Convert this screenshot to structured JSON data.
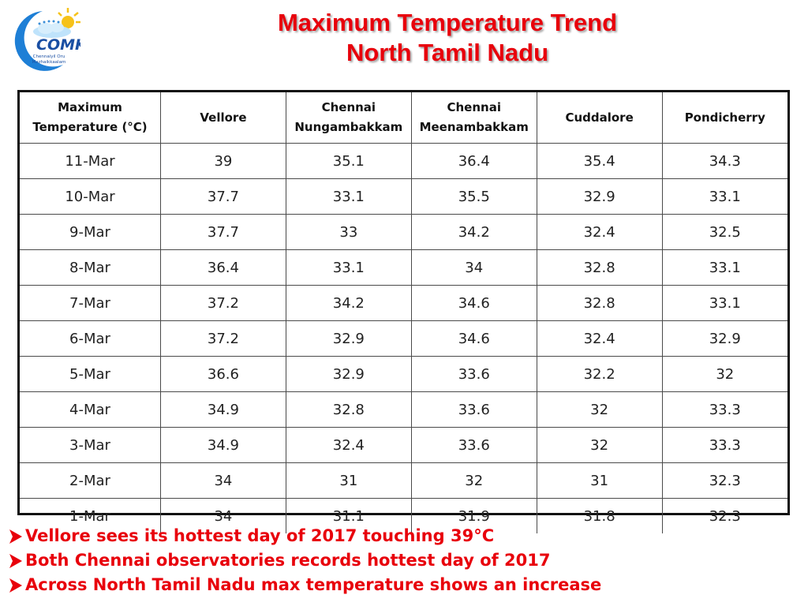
{
  "header": {
    "title_line1": "Maximum Temperature Trend",
    "title_line2": "North Tamil Nadu",
    "logo": {
      "icon": "cloud-sun-moon-logo",
      "brand": "COMK",
      "tagline_line1": "Chennaiyil Oru",
      "tagline_line2": "Mazhaikkaalam",
      "colors": {
        "moon": "#1e7fd6",
        "sun": "#f6c21a",
        "text": "#1a4fa3"
      }
    }
  },
  "table": {
    "headers": [
      "Maximum\nTemperature (°C)",
      "Vellore",
      "Chennai\nNungambakkam",
      "Chennai\nMeenambakkam",
      "Cuddalore",
      "Pondicherry"
    ],
    "rows": [
      [
        "11-Mar",
        "39",
        "35.1",
        "36.4",
        "35.4",
        "34.3"
      ],
      [
        "10-Mar",
        "37.7",
        "33.1",
        "35.5",
        "32.9",
        "33.1"
      ],
      [
        "9-Mar",
        "37.7",
        "33",
        "34.2",
        "32.4",
        "32.5"
      ],
      [
        "8-Mar",
        "36.4",
        "33.1",
        "34",
        "32.8",
        "33.1"
      ],
      [
        "7-Mar",
        "37.2",
        "34.2",
        "34.6",
        "32.8",
        "33.1"
      ],
      [
        "6-Mar",
        "37.2",
        "32.9",
        "34.6",
        "32.4",
        "32.9"
      ],
      [
        "5-Mar",
        "36.6",
        "32.9",
        "33.6",
        "32.2",
        "32"
      ],
      [
        "4-Mar",
        "34.9",
        "32.8",
        "33.6",
        "32",
        "33.3"
      ],
      [
        "3-Mar",
        "34.9",
        "32.4",
        "33.6",
        "32",
        "33.3"
      ],
      [
        "2-Mar",
        "34",
        "31",
        "32",
        "31",
        "32.3"
      ],
      [
        "1-Mar",
        "34",
        "31.1",
        "31.9",
        "31.8",
        "32.3"
      ]
    ]
  },
  "notes": [
    "Vellore sees its hottest day of 2017 touching 39°C",
    "Both Chennai observatories records hottest day of 2017",
    "Across North Tamil Nadu max temperature shows an increase"
  ],
  "colors": {
    "title": "#e8000b",
    "notes": "#e8000b",
    "grid": "#4a4a4a"
  }
}
